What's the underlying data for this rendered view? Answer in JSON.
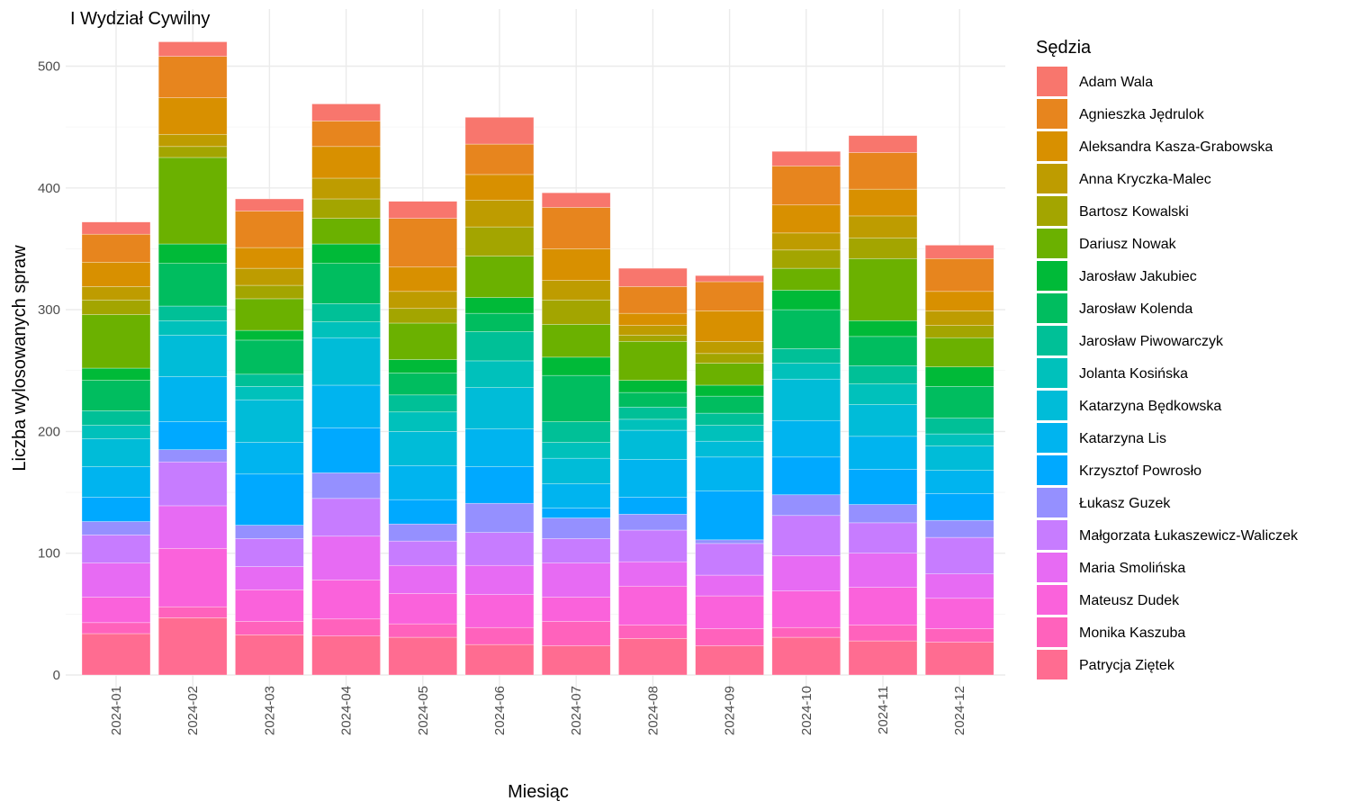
{
  "chart_data": {
    "type": "bar",
    "stacked": true,
    "title": "I Wydział Cywilny",
    "xlabel": "Miesiąc",
    "ylabel": "Liczba wylosowanych spraw",
    "ylim": [
      0,
      530
    ],
    "yticks": [
      0,
      100,
      200,
      300,
      400,
      500
    ],
    "grid": true,
    "legend_title": "Sędzia",
    "legend_position": "right",
    "categories": [
      "2024-01",
      "2024-02",
      "2024-03",
      "2024-04",
      "2024-05",
      "2024-06",
      "2024-07",
      "2024-08",
      "2024-09",
      "2024-10",
      "2024-11",
      "2024-12"
    ],
    "series": [
      {
        "name": "Patrycja Ziętek",
        "color": "#FF6C91",
        "values": [
          34,
          47,
          33,
          32,
          31,
          25,
          24,
          30,
          24,
          31,
          28,
          27
        ]
      },
      {
        "name": "Monika Kaszuba",
        "color": "#FF62BC",
        "values": [
          9,
          9,
          11,
          14,
          11,
          14,
          20,
          11,
          14,
          8,
          13,
          11
        ]
      },
      {
        "name": "Mateusz Dudek",
        "color": "#FA62DB",
        "values": [
          21,
          48,
          26,
          32,
          25,
          27,
          20,
          32,
          27,
          30,
          31,
          25
        ]
      },
      {
        "name": "Maria Smolińska",
        "color": "#E76BF3",
        "values": [
          28,
          35,
          19,
          36,
          23,
          24,
          28,
          20,
          17,
          29,
          28,
          20
        ]
      },
      {
        "name": "Małgorzata Łukaszewicz-Waliczek",
        "color": "#C77CFF",
        "values": [
          23,
          36,
          23,
          31,
          20,
          27,
          20,
          26,
          26,
          33,
          25,
          30
        ]
      },
      {
        "name": "Łukasz Guzek",
        "color": "#9590FF",
        "values": [
          11,
          10,
          11,
          21,
          14,
          24,
          17,
          13,
          3,
          17,
          15,
          14
        ]
      },
      {
        "name": "Krzysztof Powrosło",
        "color": "#00A9FF",
        "values": [
          20,
          23,
          42,
          37,
          20,
          30,
          8,
          14,
          40,
          31,
          29,
          22
        ]
      },
      {
        "name": "Katarzyna Lis",
        "color": "#00B4EF",
        "values": [
          25,
          37,
          26,
          35,
          28,
          31,
          20,
          31,
          28,
          30,
          27,
          19
        ]
      },
      {
        "name": "Katarzyna Będkowska",
        "color": "#00BCD8",
        "values": [
          23,
          34,
          35,
          39,
          28,
          34,
          21,
          24,
          13,
          34,
          26,
          20
        ]
      },
      {
        "name": "Jolanta Kosińska",
        "color": "#00C1BB",
        "values": [
          11,
          12,
          11,
          13,
          16,
          22,
          13,
          9,
          13,
          13,
          17,
          10
        ]
      },
      {
        "name": "Jarosław Piwowarczyk",
        "color": "#00C097",
        "values": [
          12,
          12,
          10,
          15,
          14,
          24,
          17,
          10,
          10,
          12,
          15,
          13
        ]
      },
      {
        "name": "Jarosław Kolenda",
        "color": "#00BD5F",
        "values": [
          25,
          35,
          28,
          33,
          18,
          15,
          38,
          12,
          14,
          32,
          24,
          26
        ]
      },
      {
        "name": "Jarosław Jakubiec",
        "color": "#00BA38",
        "values": [
          10,
          16,
          8,
          16,
          11,
          13,
          15,
          10,
          9,
          16,
          13,
          16
        ]
      },
      {
        "name": "Dariusz Nowak",
        "color": "#6BB100",
        "values": [
          44,
          71,
          26,
          21,
          30,
          34,
          27,
          32,
          18,
          18,
          51,
          24
        ]
      },
      {
        "name": "Bartosz Kowalski",
        "color": "#A3A500",
        "values": [
          12,
          9,
          11,
          16,
          12,
          24,
          20,
          5,
          8,
          15,
          17,
          10
        ]
      },
      {
        "name": "Anna Kryczka-Malec",
        "color": "#BE9C00",
        "values": [
          11,
          10,
          14,
          17,
          14,
          22,
          16,
          8,
          10,
          14,
          18,
          12
        ]
      },
      {
        "name": "Aleksandra Kasza-Grabowska",
        "color": "#D89000",
        "values": [
          20,
          30,
          17,
          26,
          20,
          21,
          26,
          10,
          25,
          23,
          22,
          16
        ]
      },
      {
        "name": "Agnieszka Jędrulok",
        "color": "#E7851E",
        "values": [
          23,
          34,
          30,
          21,
          40,
          25,
          34,
          22,
          24,
          32,
          30,
          27
        ]
      },
      {
        "name": "Adam Wala",
        "color": "#F8766D",
        "values": [
          10,
          12,
          10,
          14,
          14,
          22,
          12,
          15,
          5,
          12,
          14,
          11
        ]
      }
    ]
  }
}
